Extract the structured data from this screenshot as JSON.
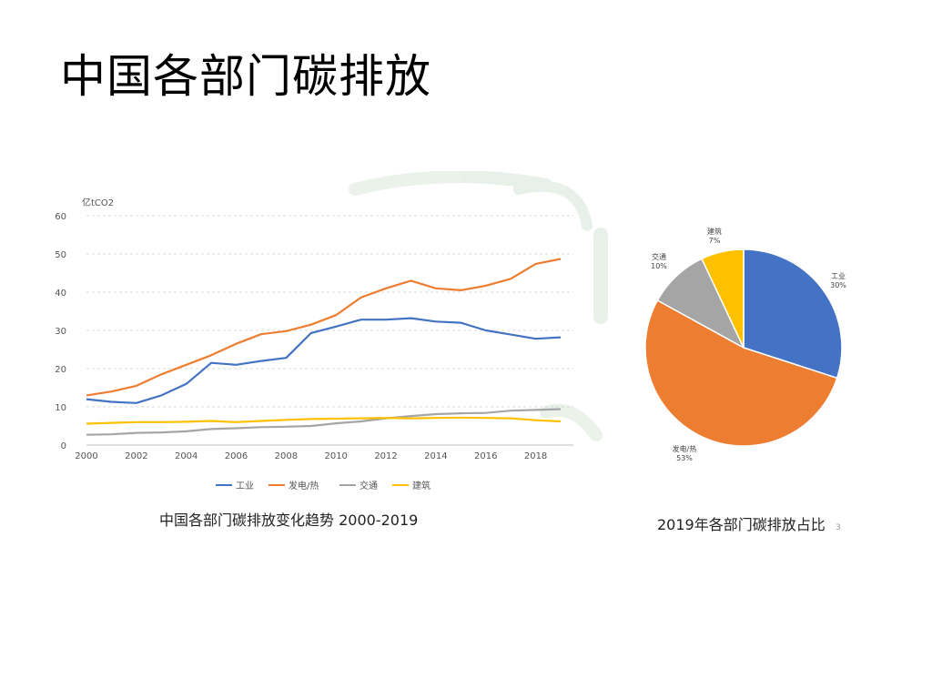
{
  "slide": {
    "title": "中国各部门碳排放",
    "page_number": "3"
  },
  "colors": {
    "industry": "#4472C4",
    "power": "#ED7D31",
    "transport": "#A5A5A5",
    "building": "#FFC000",
    "watermark": "#2e7d32"
  },
  "chart_data": [
    {
      "type": "line",
      "title": "中国各部门碳排放变化趋势 2000-2019",
      "ylabel": "亿tCO2",
      "xlabel": "",
      "ylim": [
        0,
        60
      ],
      "yticks": [
        0,
        10,
        20,
        30,
        40,
        50,
        60
      ],
      "xticks": [
        2000,
        2002,
        2004,
        2006,
        2008,
        2010,
        2012,
        2014,
        2016,
        2018
      ],
      "grid": "horizontal dashed",
      "legend": "bottom",
      "x": [
        2000,
        2001,
        2002,
        2003,
        2004,
        2005,
        2006,
        2007,
        2008,
        2009,
        2010,
        2011,
        2012,
        2013,
        2014,
        2015,
        2016,
        2017,
        2018,
        2019
      ],
      "series": [
        {
          "name": "工业",
          "color_key": "industry",
          "values": [
            12,
            11.3,
            11,
            13,
            16,
            21.5,
            21,
            22,
            22.8,
            29.3,
            31,
            32.8,
            32.8,
            33.2,
            32.3,
            32,
            30,
            28.9,
            27.8,
            28.2
          ]
        },
        {
          "name": "发电/热",
          "color_key": "power",
          "values": [
            13,
            14,
            15.5,
            18.5,
            21,
            23.5,
            26.5,
            29,
            29.8,
            31.5,
            34,
            38.6,
            41,
            43,
            41,
            40.5,
            41.7,
            43.5,
            47.4,
            48.7
          ]
        },
        {
          "name": "交通",
          "color_key": "transport",
          "values": [
            2.7,
            2.8,
            3.2,
            3.3,
            3.6,
            4.2,
            4.4,
            4.7,
            4.8,
            5.0,
            5.7,
            6.2,
            7.0,
            7.6,
            8.1,
            8.3,
            8.4,
            9.0,
            9.2,
            9.4
          ]
        },
        {
          "name": "建筑",
          "color_key": "building",
          "values": [
            5.6,
            5.8,
            6.0,
            6.0,
            6.1,
            6.3,
            6.0,
            6.3,
            6.6,
            6.8,
            6.9,
            7.0,
            7.1,
            7.0,
            7.1,
            7.2,
            7.1,
            7.0,
            6.5,
            6.2
          ]
        }
      ]
    },
    {
      "type": "pie",
      "title": "2019年各部门碳排放占比",
      "slices": [
        {
          "name": "工业",
          "value": 30,
          "label": "30%",
          "color_key": "industry"
        },
        {
          "name": "发电/热",
          "value": 53,
          "label": "53%",
          "color_key": "power"
        },
        {
          "name": "交通",
          "value": 10,
          "label": "10%",
          "color_key": "transport"
        },
        {
          "name": "建筑",
          "value": 7,
          "label": "7%",
          "color_key": "building"
        }
      ]
    }
  ]
}
